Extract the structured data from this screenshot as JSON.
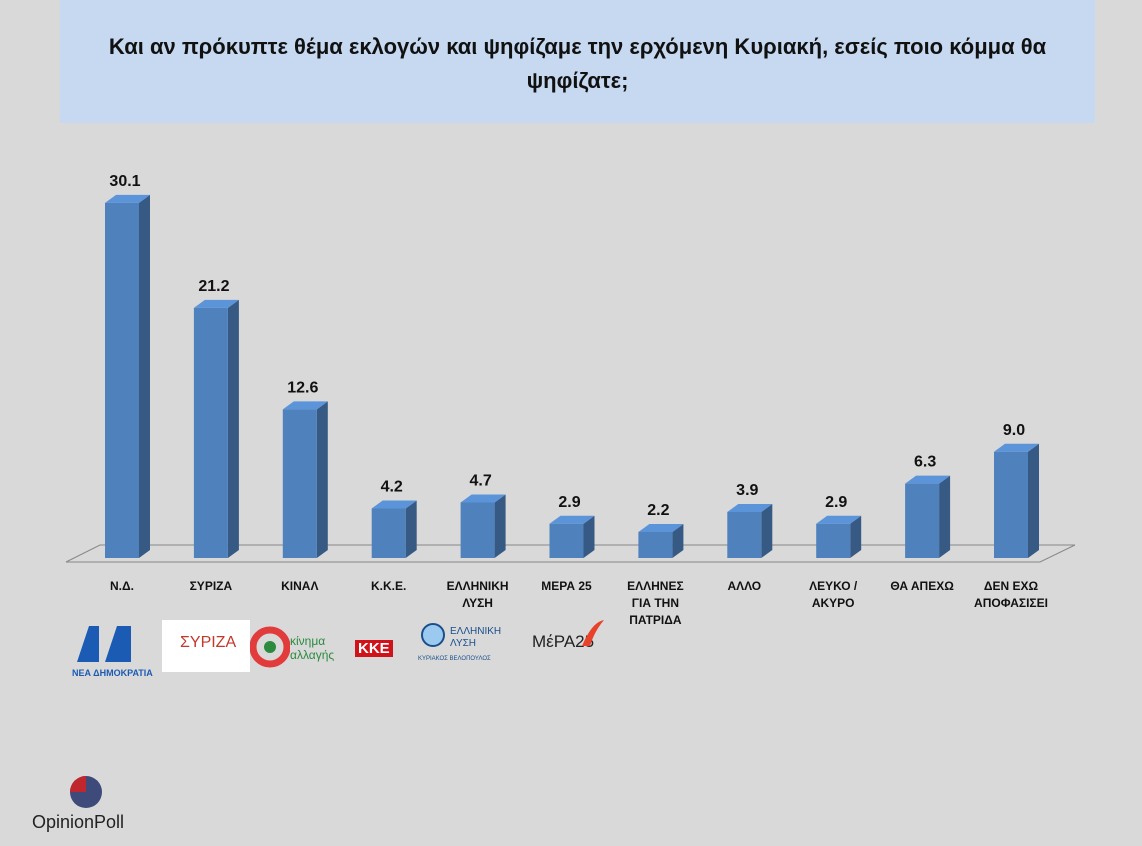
{
  "chart_data": {
    "type": "bar3d",
    "title": "Και αν πρόκυπτε θέμα εκλογών και ψηφίζαμε την ερχόμενη Κυριακή, εσείς ποιο κόμμα θα ψηφίζατε;",
    "categories": [
      "Ν.Δ.",
      "ΣΥΡΙΖΑ",
      "ΚΙΝΑΛ",
      "Κ.Κ.Ε.",
      "ΕΛΛΗΝΙΚΗ ΛΥΣΗ",
      "ΜΕΡΑ 25",
      "ΕΛΛΗΝΕΣ ΓΙΑ ΤΗΝ ΠΑΤΡΙΔΑ",
      "ΑΛΛΟ",
      "ΛΕΥΚΟ / ΑΚΥΡΟ",
      "ΘΑ ΑΠΕΧΩ",
      "ΔΕΝ ΕΧΩ ΑΠΟΦΑΣΙΣΕΙ"
    ],
    "values": [
      30.1,
      21.2,
      12.6,
      4.2,
      4.7,
      2.9,
      2.2,
      3.9,
      2.9,
      6.3,
      9.0
    ],
    "value_labels": [
      "30.1",
      "21.2",
      "12.6",
      "4.2",
      "4.7",
      "2.9",
      "2.2",
      "3.9",
      "2.9",
      "6.3",
      "9.0"
    ],
    "color": "#4f81bd"
  },
  "logos": [
    "ΝΕΑ ΔΗΜΟΚΡΑΤΙΑ",
    "ΣΥΡΙΖΑ",
    "κίνημα αλλαγής",
    "ΚΚΕ",
    "ΕΛΛΗΝΙΚΗ ΛΥΣΗ",
    "ΚΥΡΙΑΚΟΣ ΒΕΛΟΠΟΥΛΟΣ",
    "ΜέΡΑ25"
  ],
  "brand": "OpinionPoll"
}
